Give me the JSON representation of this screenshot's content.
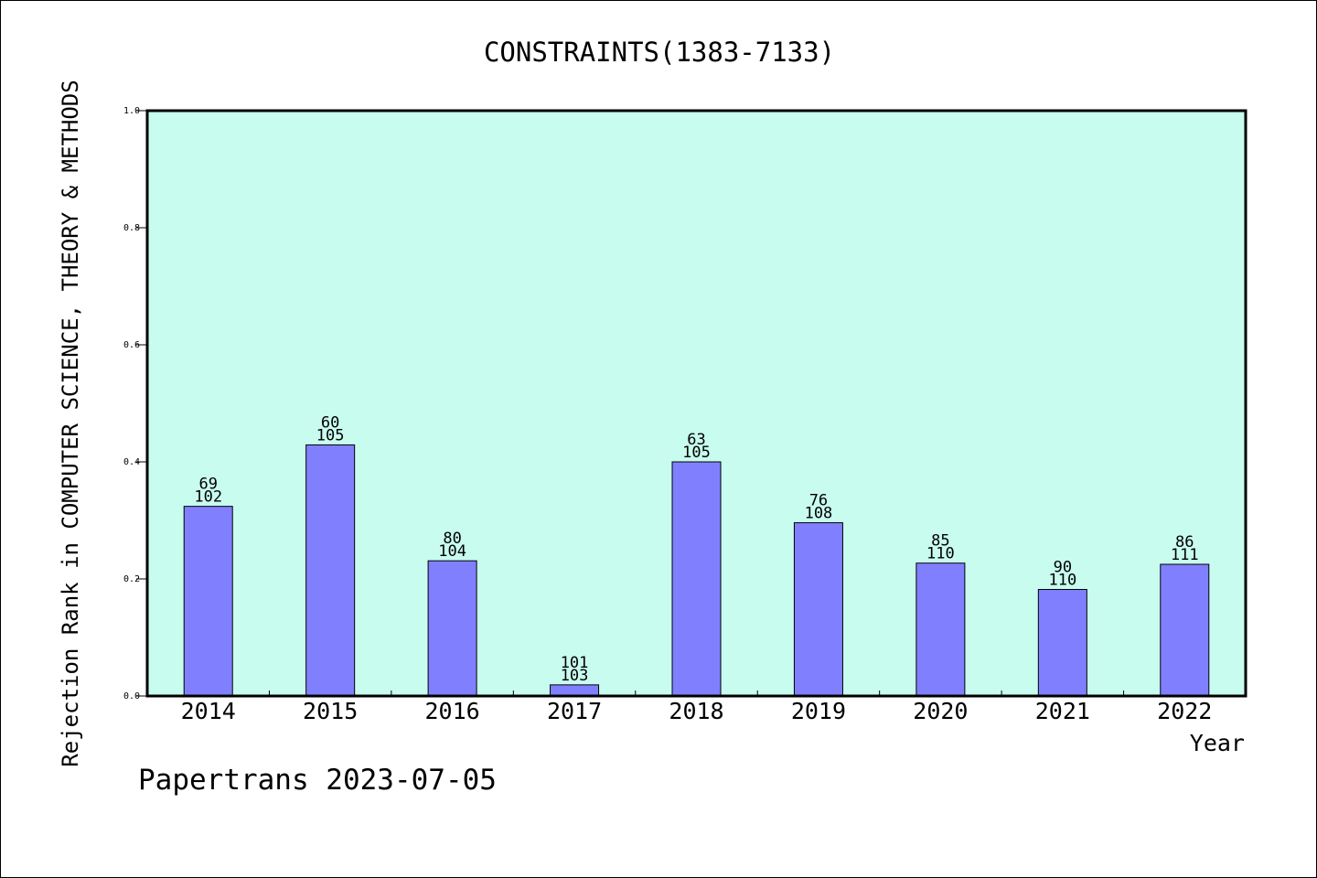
{
  "colors": {
    "plot_background": "#c8fcee",
    "bar_fill": "#8080ff",
    "bar_stroke": "#000000",
    "text": "#000000"
  },
  "footer": {
    "text": "Papertrans 2023-07-05"
  },
  "chart_data": {
    "type": "bar",
    "title": "CONSTRAINTS(1383-7133)",
    "xlabel": "Year",
    "ylabel": "Rejection Rank in COMPUTER SCIENCE, THEORY & METHODS",
    "ylim": [
      0,
      1.0
    ],
    "yticks": [
      "0.0",
      "0.2",
      "0.4",
      "0.6",
      "0.8",
      "1.0"
    ],
    "grid": false,
    "categories": [
      "2014",
      "2015",
      "2016",
      "2017",
      "2018",
      "2019",
      "2020",
      "2021",
      "2022"
    ],
    "values": [
      0.324,
      0.429,
      0.231,
      0.019,
      0.4,
      0.296,
      0.227,
      0.182,
      0.225
    ],
    "rank": [
      "69",
      "60",
      "80",
      "101",
      "63",
      "76",
      "85",
      "90",
      "86"
    ],
    "total": [
      "102",
      "105",
      "104",
      "103",
      "105",
      "108",
      "110",
      "110",
      "111"
    ]
  }
}
